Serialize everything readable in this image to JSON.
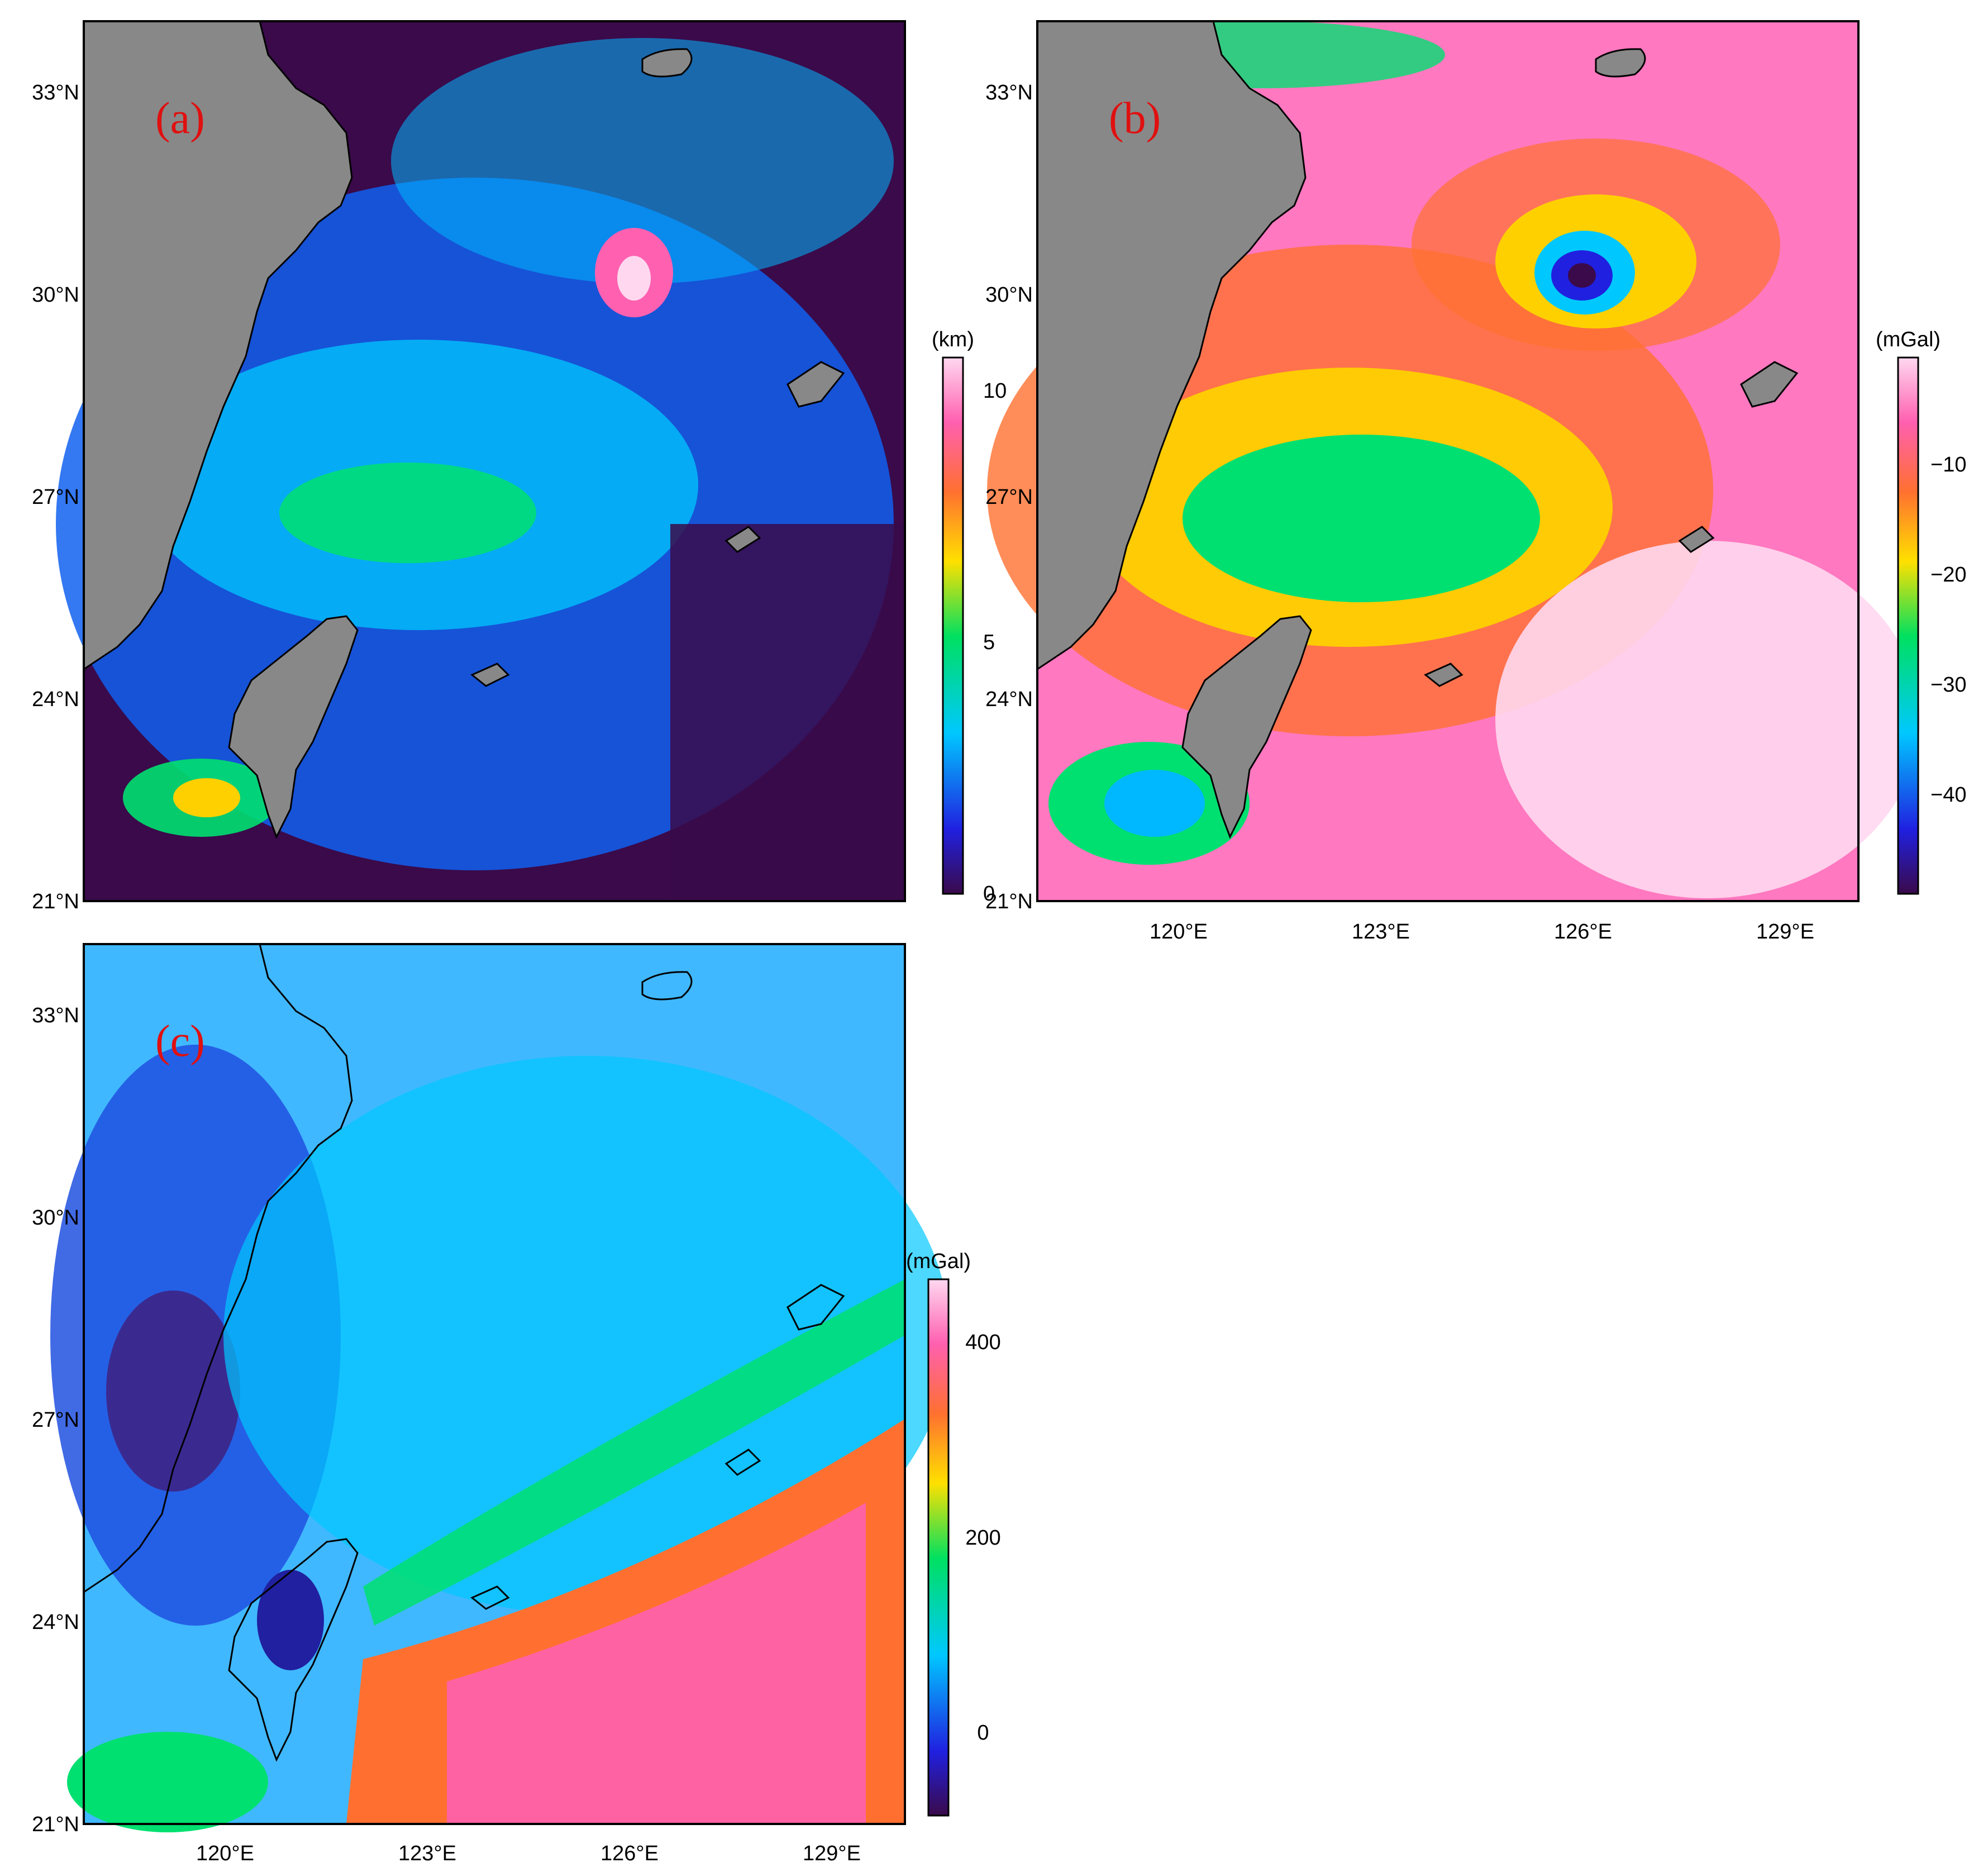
{
  "figure": {
    "panels": [
      {
        "id": "a",
        "tag": "(a)",
        "colorbar": {
          "unit": "(km)",
          "ticks": [
            "0",
            "5",
            "10"
          ],
          "colors": [
            "#3a0a4a",
            "#2020e0",
            "#00c8ff",
            "#00e060",
            "#ffe000",
            "#ff7030",
            "#ff60b0",
            "#ffd8f0"
          ]
        }
      },
      {
        "id": "b",
        "tag": "(b)",
        "colorbar": {
          "unit": "(mGal)",
          "ticks": [
            "−40",
            "−30",
            "−20",
            "−10"
          ],
          "colors": [
            "#3a0a4a",
            "#2020e0",
            "#00c8ff",
            "#00e060",
            "#ffe000",
            "#ff7030",
            "#ff60b0",
            "#ffd8f0"
          ]
        }
      },
      {
        "id": "c",
        "tag": "(c)",
        "colorbar": {
          "unit": "(mGal)",
          "ticks": [
            "0",
            "200",
            "400"
          ],
          "colors": [
            "#3a0a4a",
            "#2020e0",
            "#00c8ff",
            "#00e060",
            "#ffe000",
            "#ff7030",
            "#ff60b0",
            "#ffd8f0"
          ]
        }
      }
    ],
    "lat_labels": [
      "21°N",
      "24°N",
      "27°N",
      "30°N",
      "33°N"
    ],
    "lon_labels": [
      "120°E",
      "123°E",
      "126°E",
      "129°E"
    ],
    "land_color": "#888888"
  }
}
